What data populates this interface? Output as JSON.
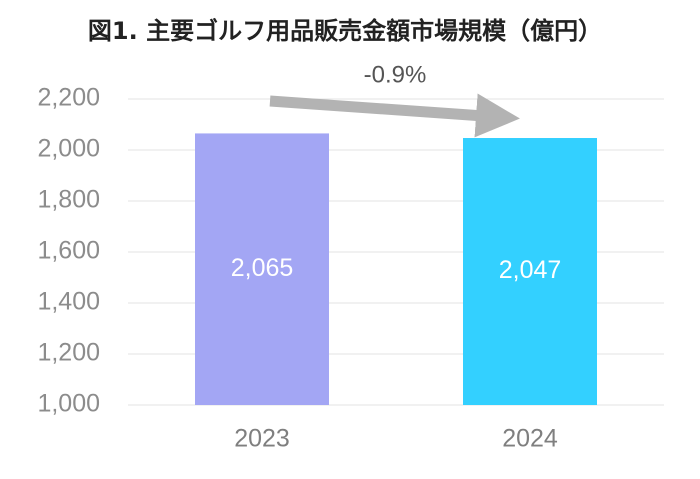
{
  "chart_data": {
    "type": "bar",
    "title": "図1. 主要ゴルフ用品販売金額市場規模（億円）",
    "categories": [
      "2023",
      "2024"
    ],
    "values": [
      2065,
      2047
    ],
    "value_labels": [
      "2,065",
      "2,047"
    ],
    "colors": [
      "#a3a6f4",
      "#33d0ff"
    ],
    "ylim": [
      1000,
      2200
    ],
    "yticks": [
      {
        "value": 1000,
        "label": "1,000"
      },
      {
        "value": 1200,
        "label": "1,200"
      },
      {
        "value": 1400,
        "label": "1,400"
      },
      {
        "value": 1600,
        "label": "1,600"
      },
      {
        "value": 1800,
        "label": "1,800"
      },
      {
        "value": 2000,
        "label": "2,000"
      },
      {
        "value": 2200,
        "label": "2,200"
      }
    ],
    "grid": true,
    "annotation": "-0.9%"
  }
}
